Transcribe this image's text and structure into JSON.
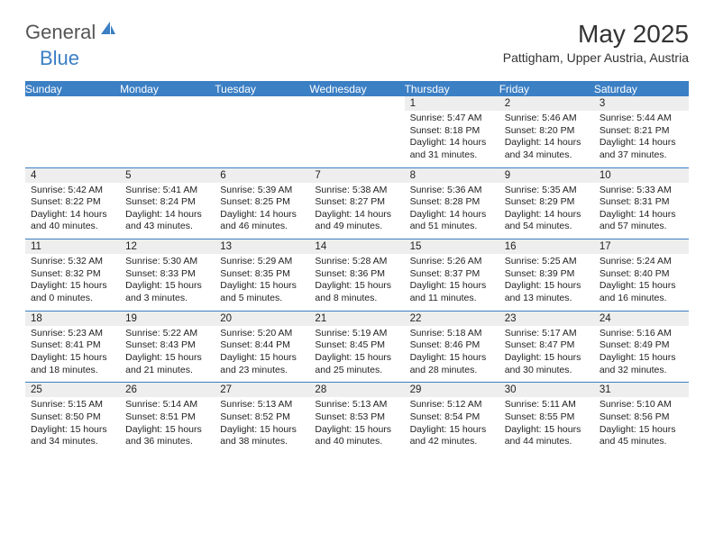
{
  "logo": {
    "general": "General",
    "blue": "Blue"
  },
  "header": {
    "title": "May 2025",
    "subtitle": "Pattigham, Upper Austria, Austria"
  },
  "colors": {
    "accent": "#3b7fc4",
    "daynum_bg": "#eeeeee",
    "text": "#222222",
    "page_bg": "#ffffff"
  },
  "weekday_labels": [
    "Sunday",
    "Monday",
    "Tuesday",
    "Wednesday",
    "Thursday",
    "Friday",
    "Saturday"
  ],
  "weeks": [
    [
      null,
      null,
      null,
      null,
      {
        "n": "1",
        "sunrise": "Sunrise: 5:47 AM",
        "sunset": "Sunset: 8:18 PM",
        "daylight": "Daylight: 14 hours and 31 minutes."
      },
      {
        "n": "2",
        "sunrise": "Sunrise: 5:46 AM",
        "sunset": "Sunset: 8:20 PM",
        "daylight": "Daylight: 14 hours and 34 minutes."
      },
      {
        "n": "3",
        "sunrise": "Sunrise: 5:44 AM",
        "sunset": "Sunset: 8:21 PM",
        "daylight": "Daylight: 14 hours and 37 minutes."
      }
    ],
    [
      {
        "n": "4",
        "sunrise": "Sunrise: 5:42 AM",
        "sunset": "Sunset: 8:22 PM",
        "daylight": "Daylight: 14 hours and 40 minutes."
      },
      {
        "n": "5",
        "sunrise": "Sunrise: 5:41 AM",
        "sunset": "Sunset: 8:24 PM",
        "daylight": "Daylight: 14 hours and 43 minutes."
      },
      {
        "n": "6",
        "sunrise": "Sunrise: 5:39 AM",
        "sunset": "Sunset: 8:25 PM",
        "daylight": "Daylight: 14 hours and 46 minutes."
      },
      {
        "n": "7",
        "sunrise": "Sunrise: 5:38 AM",
        "sunset": "Sunset: 8:27 PM",
        "daylight": "Daylight: 14 hours and 49 minutes."
      },
      {
        "n": "8",
        "sunrise": "Sunrise: 5:36 AM",
        "sunset": "Sunset: 8:28 PM",
        "daylight": "Daylight: 14 hours and 51 minutes."
      },
      {
        "n": "9",
        "sunrise": "Sunrise: 5:35 AM",
        "sunset": "Sunset: 8:29 PM",
        "daylight": "Daylight: 14 hours and 54 minutes."
      },
      {
        "n": "10",
        "sunrise": "Sunrise: 5:33 AM",
        "sunset": "Sunset: 8:31 PM",
        "daylight": "Daylight: 14 hours and 57 minutes."
      }
    ],
    [
      {
        "n": "11",
        "sunrise": "Sunrise: 5:32 AM",
        "sunset": "Sunset: 8:32 PM",
        "daylight": "Daylight: 15 hours and 0 minutes."
      },
      {
        "n": "12",
        "sunrise": "Sunrise: 5:30 AM",
        "sunset": "Sunset: 8:33 PM",
        "daylight": "Daylight: 15 hours and 3 minutes."
      },
      {
        "n": "13",
        "sunrise": "Sunrise: 5:29 AM",
        "sunset": "Sunset: 8:35 PM",
        "daylight": "Daylight: 15 hours and 5 minutes."
      },
      {
        "n": "14",
        "sunrise": "Sunrise: 5:28 AM",
        "sunset": "Sunset: 8:36 PM",
        "daylight": "Daylight: 15 hours and 8 minutes."
      },
      {
        "n": "15",
        "sunrise": "Sunrise: 5:26 AM",
        "sunset": "Sunset: 8:37 PM",
        "daylight": "Daylight: 15 hours and 11 minutes."
      },
      {
        "n": "16",
        "sunrise": "Sunrise: 5:25 AM",
        "sunset": "Sunset: 8:39 PM",
        "daylight": "Daylight: 15 hours and 13 minutes."
      },
      {
        "n": "17",
        "sunrise": "Sunrise: 5:24 AM",
        "sunset": "Sunset: 8:40 PM",
        "daylight": "Daylight: 15 hours and 16 minutes."
      }
    ],
    [
      {
        "n": "18",
        "sunrise": "Sunrise: 5:23 AM",
        "sunset": "Sunset: 8:41 PM",
        "daylight": "Daylight: 15 hours and 18 minutes."
      },
      {
        "n": "19",
        "sunrise": "Sunrise: 5:22 AM",
        "sunset": "Sunset: 8:43 PM",
        "daylight": "Daylight: 15 hours and 21 minutes."
      },
      {
        "n": "20",
        "sunrise": "Sunrise: 5:20 AM",
        "sunset": "Sunset: 8:44 PM",
        "daylight": "Daylight: 15 hours and 23 minutes."
      },
      {
        "n": "21",
        "sunrise": "Sunrise: 5:19 AM",
        "sunset": "Sunset: 8:45 PM",
        "daylight": "Daylight: 15 hours and 25 minutes."
      },
      {
        "n": "22",
        "sunrise": "Sunrise: 5:18 AM",
        "sunset": "Sunset: 8:46 PM",
        "daylight": "Daylight: 15 hours and 28 minutes."
      },
      {
        "n": "23",
        "sunrise": "Sunrise: 5:17 AM",
        "sunset": "Sunset: 8:47 PM",
        "daylight": "Daylight: 15 hours and 30 minutes."
      },
      {
        "n": "24",
        "sunrise": "Sunrise: 5:16 AM",
        "sunset": "Sunset: 8:49 PM",
        "daylight": "Daylight: 15 hours and 32 minutes."
      }
    ],
    [
      {
        "n": "25",
        "sunrise": "Sunrise: 5:15 AM",
        "sunset": "Sunset: 8:50 PM",
        "daylight": "Daylight: 15 hours and 34 minutes."
      },
      {
        "n": "26",
        "sunrise": "Sunrise: 5:14 AM",
        "sunset": "Sunset: 8:51 PM",
        "daylight": "Daylight: 15 hours and 36 minutes."
      },
      {
        "n": "27",
        "sunrise": "Sunrise: 5:13 AM",
        "sunset": "Sunset: 8:52 PM",
        "daylight": "Daylight: 15 hours and 38 minutes."
      },
      {
        "n": "28",
        "sunrise": "Sunrise: 5:13 AM",
        "sunset": "Sunset: 8:53 PM",
        "daylight": "Daylight: 15 hours and 40 minutes."
      },
      {
        "n": "29",
        "sunrise": "Sunrise: 5:12 AM",
        "sunset": "Sunset: 8:54 PM",
        "daylight": "Daylight: 15 hours and 42 minutes."
      },
      {
        "n": "30",
        "sunrise": "Sunrise: 5:11 AM",
        "sunset": "Sunset: 8:55 PM",
        "daylight": "Daylight: 15 hours and 44 minutes."
      },
      {
        "n": "31",
        "sunrise": "Sunrise: 5:10 AM",
        "sunset": "Sunset: 8:56 PM",
        "daylight": "Daylight: 15 hours and 45 minutes."
      }
    ]
  ]
}
